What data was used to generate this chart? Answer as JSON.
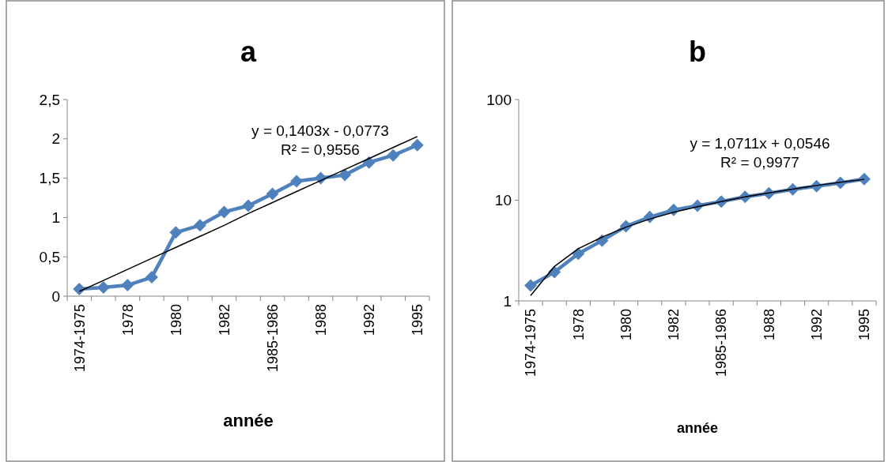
{
  "chart_data": [
    {
      "type": "line",
      "title": "a",
      "xlabel": "année",
      "marker": "diamond",
      "categories": [
        "1974-1975",
        null,
        "1978",
        null,
        "1980",
        null,
        "1982",
        null,
        "1985-1986",
        null,
        "1988",
        null,
        "1992",
        null,
        "1995"
      ],
      "ylim": [
        0,
        2.5
      ],
      "yticks": [
        0,
        {
          "value": 0.5,
          "label": "0,5"
        },
        1,
        {
          "value": 1.5,
          "label": "1,5"
        },
        2,
        {
          "value": 2.5,
          "label": "2,5"
        }
      ],
      "annotations": [
        "y = 0,1403x - 0,0773",
        "R² = 0,9556"
      ],
      "series": [
        {
          "color": "#4f81bd",
          "values": [
            0.09,
            0.11,
            0.14,
            0.24,
            0.81,
            0.9,
            1.07,
            1.15,
            1.3,
            1.46,
            1.5,
            1.54,
            1.7,
            1.79,
            1.92
          ]
        },
        {
          "type": "line",
          "color": "#000000",
          "marker": "none",
          "values": [
            0.06,
            0.2,
            0.34,
            0.48,
            0.62,
            0.76,
            0.9,
            1.05,
            1.19,
            1.33,
            1.47,
            1.61,
            1.75,
            1.89,
            2.03
          ]
        }
      ]
    },
    {
      "type": "line",
      "title": "b",
      "xlabel": "année",
      "marker": "diamond",
      "log": "y",
      "categories": [
        "1974-1975",
        null,
        "1978",
        null,
        "1980",
        null,
        "1982",
        null,
        "1985-1986",
        null,
        "1988",
        null,
        "1992",
        null,
        "1995"
      ],
      "ylim": [
        1,
        100
      ],
      "yticks": [
        1,
        10,
        100
      ],
      "annotations": [
        "y = 1,0711x + 0,0546",
        "R² = 0,9977"
      ],
      "series": [
        {
          "color": "#4f81bd",
          "values": [
            1.42,
            1.93,
            2.94,
            3.97,
            5.5,
            6.8,
            8.0,
            8.8,
            9.7,
            10.8,
            11.7,
            12.8,
            13.8,
            14.9,
            16.2
          ]
        },
        {
          "type": "line",
          "color": "#000000",
          "marker": "none",
          "values": [
            1.13,
            2.2,
            3.3,
            4.3,
            5.4,
            6.5,
            7.6,
            8.6,
            9.7,
            10.8,
            11.8,
            12.9,
            14.0,
            15.1,
            16.1
          ]
        }
      ]
    }
  ]
}
